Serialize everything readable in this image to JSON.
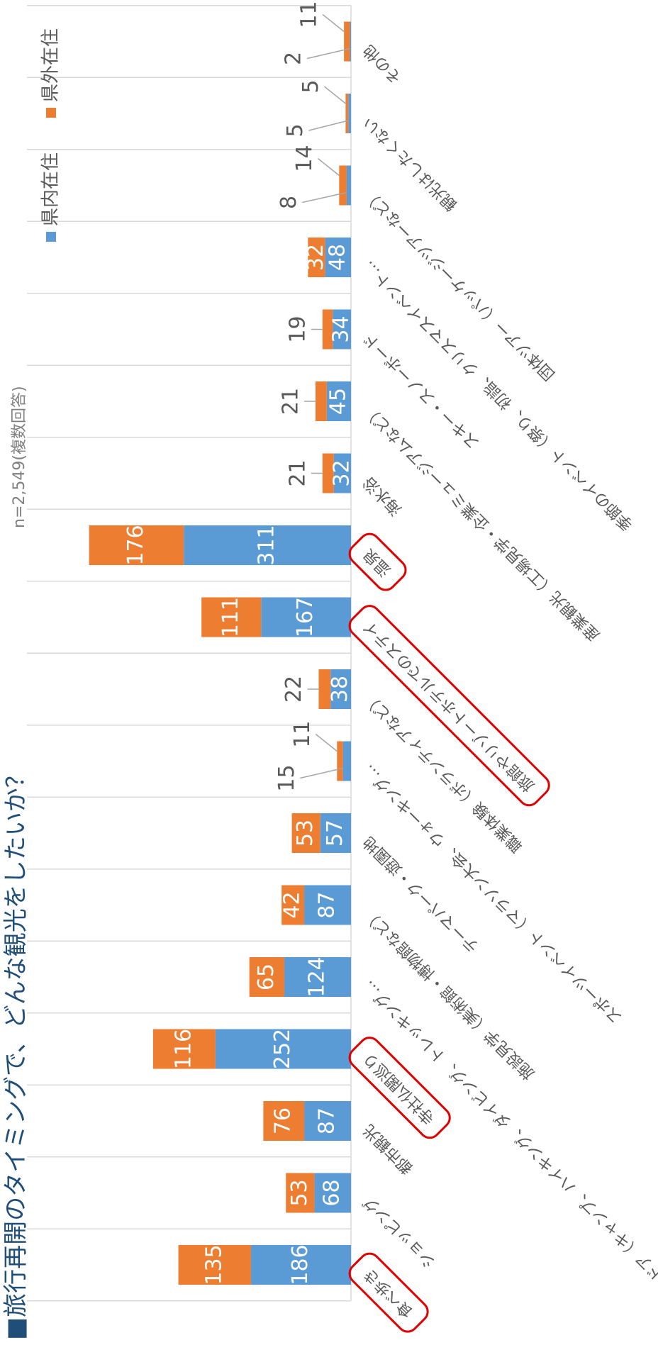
{
  "chart_data": {
    "type": "stacked_bar_rotated",
    "title": "■旅行再開のタイミングで、どんな観光をしたいか？",
    "subtitle": "n=2,549(複数回答)",
    "categories": [
      "食べ歩き",
      "ショッピング",
      "都市観光",
      "寺社仏閣巡り",
      "アウトドア（キャンプ、ハイキング、ダイビング、トレッキング…",
      "施設見学（美術館・博物館など）",
      "テーマパーク・遊園地",
      "スポーツイベント（マラソン大会、ウォーキング…",
      "職業体験（ボランティアなど）",
      "旅館やリゾートホテルでのステイ",
      "温泉",
      "海水浴",
      "産業観光（工場見学・企業ミュージアムなど）",
      "スキー・スノーボード",
      "季節のイベント（祭り、初詣、クリスマスイベント…",
      "団体ツアー（パッケージツアーなど）",
      "観光はしたくない",
      "その他"
    ],
    "series": [
      {
        "name": "県内在住",
        "color": "#5b9bd5",
        "values": [
          186,
          68,
          87,
          252,
          124,
          87,
          57,
          15,
          38,
          167,
          311,
          32,
          45,
          34,
          48,
          8,
          5,
          2
        ]
      },
      {
        "name": "県外在住",
        "color": "#ed7d31",
        "values": [
          135,
          53,
          76,
          116,
          65,
          42,
          53,
          11,
          22,
          111,
          176,
          21,
          21,
          19,
          32,
          14,
          5,
          11
        ]
      }
    ],
    "highlighted": [
      0,
      3,
      9,
      10
    ],
    "ylim": [
      0,
      600
    ]
  }
}
